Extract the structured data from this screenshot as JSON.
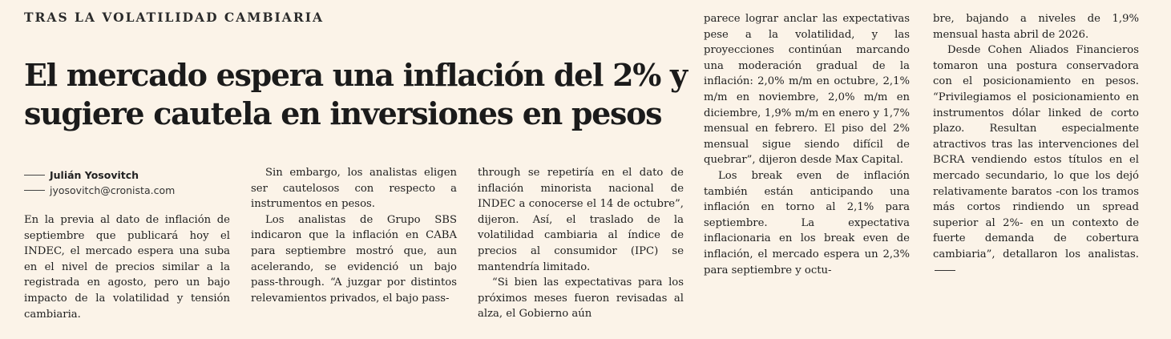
{
  "article": {
    "kicker": "TRAS LA VOLATILIDAD CAMBIARIA",
    "headline": "El mercado espera una inflación del 2% y sugiere cautela en inversiones en pesos",
    "author": "Julián Yosovitch",
    "email": "jyosovitch@cronista.com",
    "paragraphs": {
      "p1": "En la previa al dato de inflación de septiembre que publicará hoy el INDEC, el mercado espera una suba en el nivel de precios similar a la registrada en agosto, pero un bajo impacto de la volatilidad y tensión cambiaria.",
      "p2": "Sin embargo, los analistas eligen ser cautelosos con respecto a instrumentos en pesos.",
      "p3": "Los analistas de Grupo SBS indicaron que la inflación en CABA para septiembre mostró que, aun acelerando, se evidenció un bajo pass-through. “A juzgar por distintos relevamientos privados, el bajo pass-through se repetiría en el dato de inflación minorista nacional de INDEC a conocerse el 14 de octubre”, dijeron. Así, el traslado de la volatilidad cambiaria al índice de precios al consumidor (IPC) se mantendría limitado.",
      "p4": "“Si bien las expectativas para los próximos meses fueron revisadas al alza, el Gobierno aún parece lograr anclar las expectativas pese a la volatilidad, y las proyecciones continúan marcando una moderación gradual de la inflación: 2,0% m/m en octubre, 2,1% m/m en noviembre, 2,0% m/m en diciembre, 1,9% m/m en enero y 1,7% mensual en febrero. El piso del 2% mensual sigue siendo difícil de quebrar”, dijeron desde Max Capital.",
      "p5": "Los break even de inflación también están anticipando una inflación en torno al 2,1% para septiembre. La expectativa inflacionaria en los break even de inflación, el mercado espera un 2,3% para septiembre y octubre, bajando a niveles de 1,9% mensual hasta abril de 2026.",
      "p6": "Desde Cohen Aliados Financieros tomaron una postura conservadora con el posicionamiento en pesos. “Privilegiamos el posicionamiento en instrumentos dólar linked de corto plazo. Resultan especialmente atractivos tras las intervenciones del BCRA vendiendo estos títulos en el mercado secundario, lo que los dejó relativamente baratos -con los tramos más cortos rindiendo un spread superior al 2%- en un contexto de fuerte demanda de cobertura cambiaria”, detallaron los analistas."
    },
    "fragments": {
      "p3a": "Los analistas de Grupo SBS indicaron que la inflación en CABA para septiembre mostró que, aun acelerando, se evidenció un bajo pass-through. “A juzgar por distintos relevamientos privados, el bajo pass-",
      "p3b": "through se repetiría en el dato de inflación minorista nacional de INDEC a conocerse el 14 de octubre”, dijeron. Así, el traslado de la volatilidad cambiaria al índice de precios al consumidor (IPC) se mantendría limitado.",
      "p4a": "“Si bien las expectativas para los próximos meses fueron revisadas al alza, el Gobierno aún",
      "p4b": "parece lograr anclar las expectativas pese a la volatilidad, y las proyecciones continúan marcando una moderación gradual de la inflación: 2,0% m/m en octubre, 2,1% m/m en noviembre, 2,0% m/m en diciembre, 1,9% m/m en enero y 1,7% mensual en febrero. El piso del 2% mensual sigue siendo difícil de quebrar”, dijeron desde Max Capital.",
      "p5a": "Los break even de inflación también están anticipando una inflación en torno al 2,1% para septiembre. La expectativa inflacionaria en los break even de inflación, el mercado espera un 2,3% para septiembre y octu-",
      "p5b": "bre, bajando a niveles de 1,9% mensual hasta abril de 2026."
    }
  }
}
